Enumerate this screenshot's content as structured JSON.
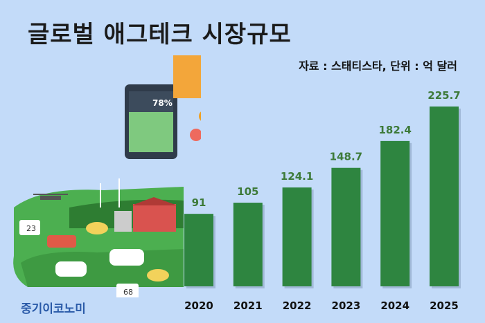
{
  "title": "글로벌 애그테크 시장규모",
  "source": "자료 : 스태티스타, 단위 : 억 달러",
  "logo": "중기이코노미",
  "illustration": {
    "tablet_reading": "78%",
    "sensor_temp": "23",
    "sensor_humidity": "68"
  },
  "colors": {
    "background": "#c3dbf9",
    "bar": "#2e8540",
    "value_label": "#3d7a39"
  },
  "chart_data": {
    "type": "bar",
    "title": "글로벌 애그테크 시장규모",
    "xlabel": "",
    "ylabel": "억 달러",
    "categories": [
      "2020",
      "2021",
      "2022",
      "2023",
      "2024",
      "2025"
    ],
    "values": [
      91,
      105,
      124.1,
      148.7,
      182.4,
      225.7
    ],
    "value_labels": [
      "91",
      "105",
      "124.1",
      "148.7",
      "182.4",
      "225.7"
    ],
    "ylim": [
      0,
      230
    ],
    "grid": false
  }
}
